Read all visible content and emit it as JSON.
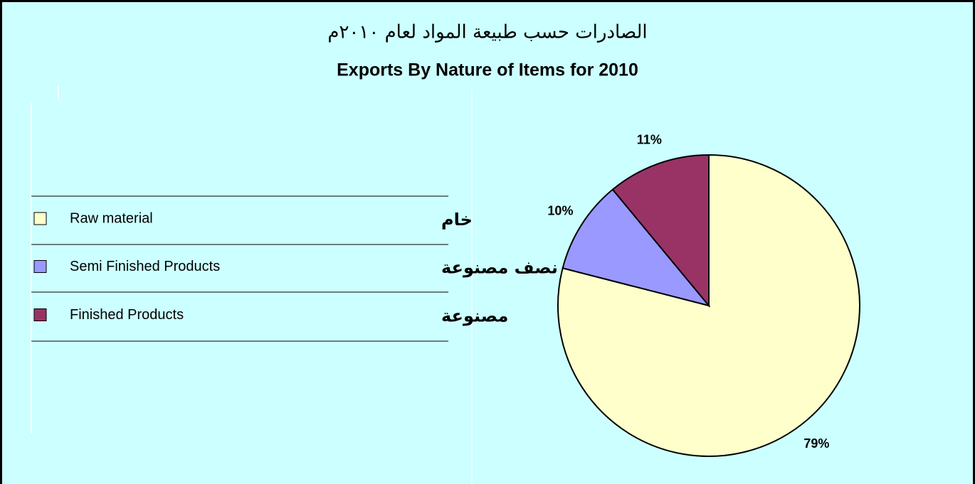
{
  "chart_data": {
    "type": "pie",
    "title_ar": "الصادرات حسب طبيعة المواد لعام ٢٠١٠م",
    "title": "Exports By Nature of Items for 2010",
    "categories": [
      "Raw material",
      "Semi Finished Products",
      "Finished Products"
    ],
    "categories_ar": [
      "خام",
      "نصف مصنوعة",
      "مصنوعة"
    ],
    "values": [
      79,
      10,
      11
    ],
    "value_labels": [
      "79%",
      "10%",
      "11%"
    ],
    "colors": [
      "#ffffcc",
      "#9999ff",
      "#993366"
    ]
  }
}
